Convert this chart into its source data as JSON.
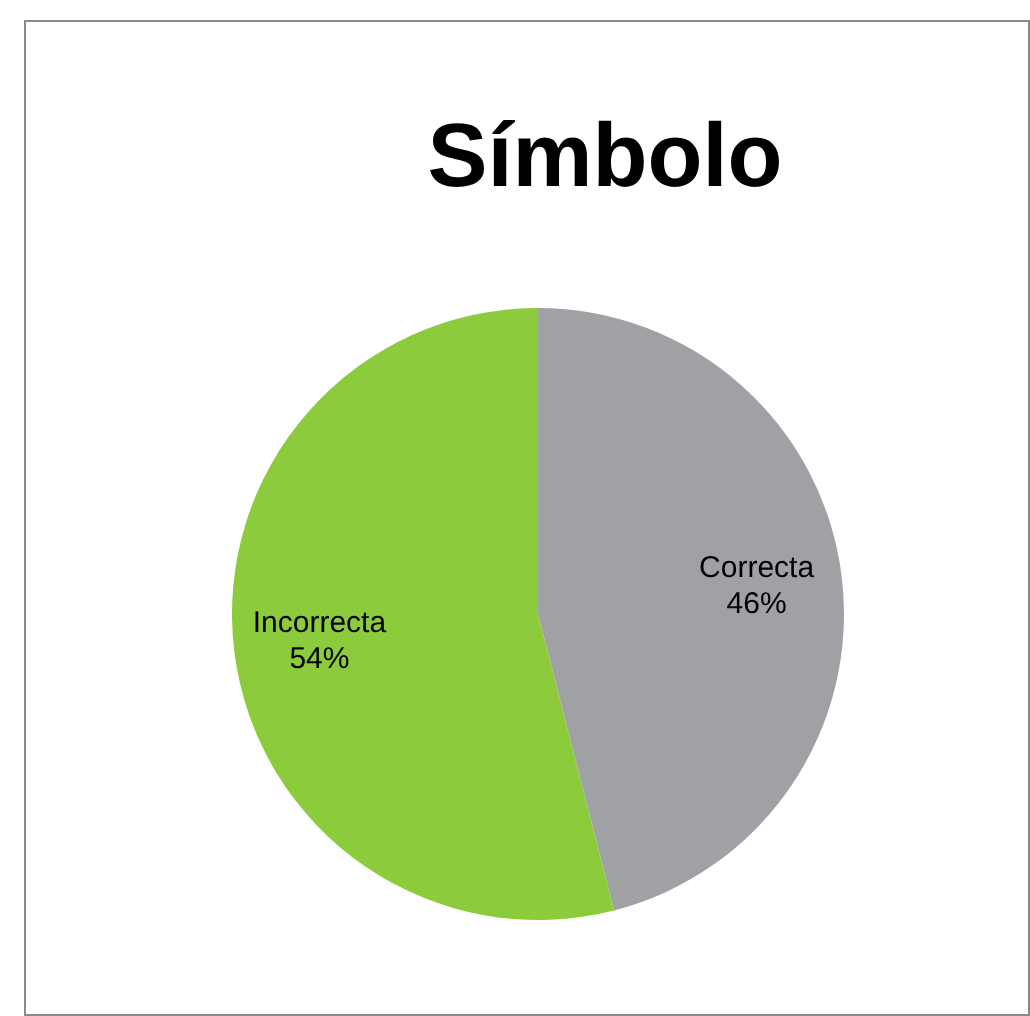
{
  "chart_data": {
    "type": "pie",
    "title": "Símbolo",
    "categories": [
      "Correcta",
      "Incorrecta"
    ],
    "values": [
      46,
      54
    ],
    "colors": [
      "#a0a1a5",
      "#8ccc3c"
    ],
    "value_labels": [
      "46%",
      "54%"
    ],
    "legend": false
  }
}
